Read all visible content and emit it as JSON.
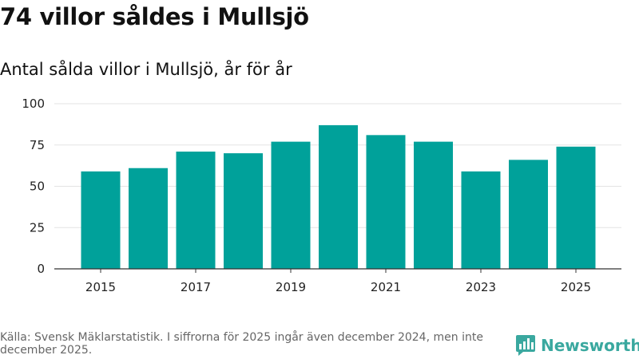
{
  "header": {
    "title": "74 villor såldes i Mullsjö"
  },
  "chart_data": {
    "type": "bar",
    "title": "Antal sålda villor i Mullsjö, år för år",
    "xlabel": "",
    "ylabel": "",
    "categories": [
      "2015",
      "2016",
      "2017",
      "2018",
      "2019",
      "2020",
      "2021",
      "2022",
      "2023",
      "2024",
      "2025"
    ],
    "values": [
      59,
      61,
      71,
      70,
      77,
      87,
      81,
      77,
      59,
      66,
      74
    ],
    "x_tick_labels": [
      "2015",
      "2017",
      "2019",
      "2021",
      "2023",
      "2025"
    ],
    "y_ticks": [
      0,
      25,
      50,
      75,
      100
    ],
    "ylim": [
      0,
      100
    ],
    "grid": true,
    "bar_color": "#00a19a"
  },
  "footer": {
    "source": "Källa: Svensk Mäklarstatistik. I siffrorna för 2025 ingår även december 2024, men inte december 2025."
  },
  "brand": {
    "name": "Newsworthy",
    "icon": "newsworthy-logo-icon",
    "color": "#3aa89f"
  }
}
